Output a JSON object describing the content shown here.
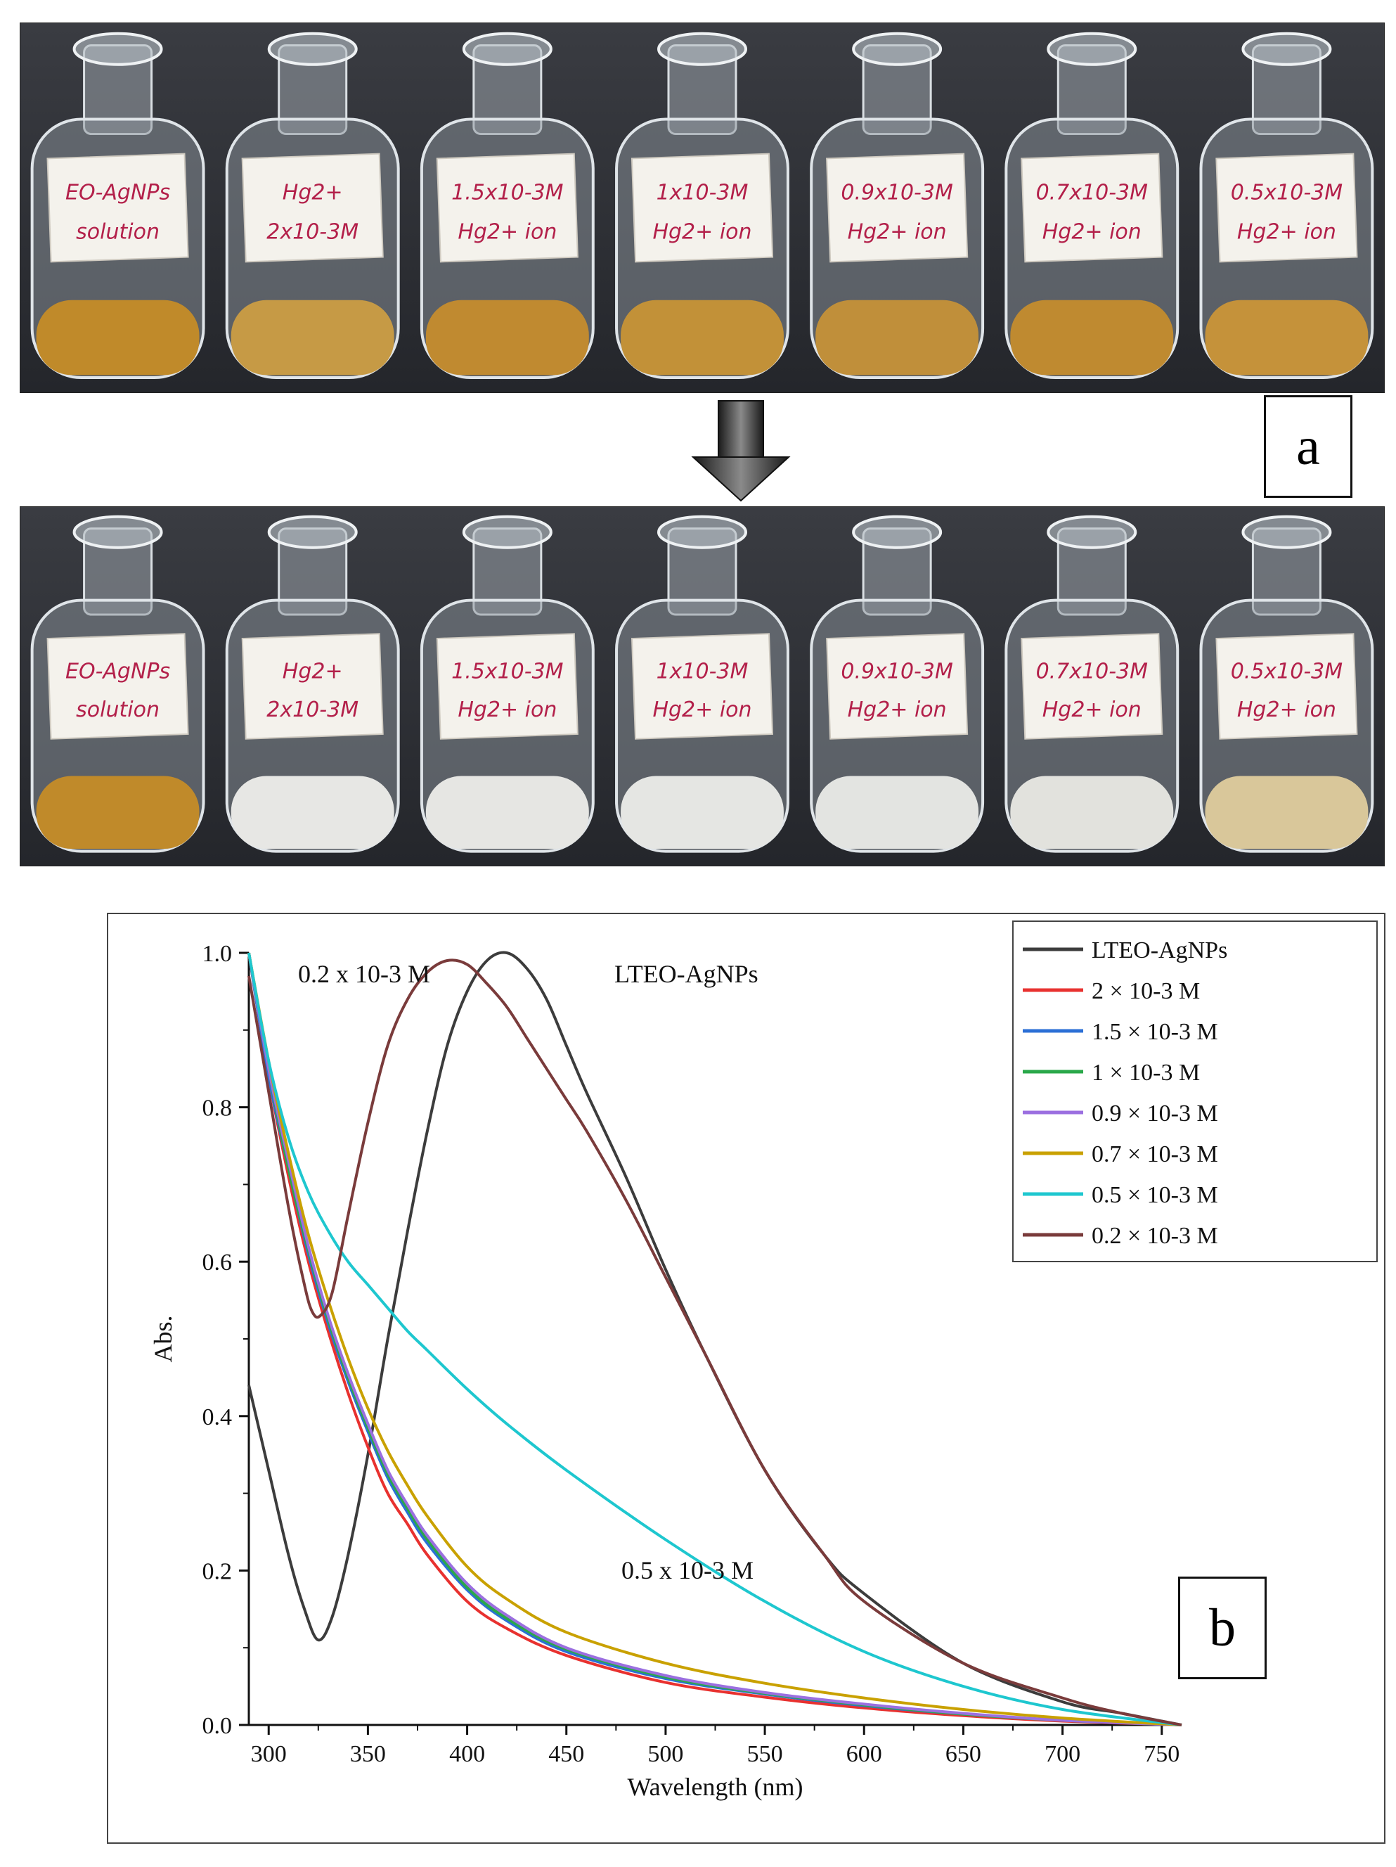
{
  "photos": {
    "top_labels": [
      [
        "EO-AgNPs",
        "solution"
      ],
      [
        "Hg2+",
        "2x10-3M"
      ],
      [
        "1.5x10-3M",
        "Hg2+ ion"
      ],
      [
        "1x10-3M",
        "Hg2+ ion"
      ],
      [
        "0.9x10-3M",
        "Hg2+ ion"
      ],
      [
        "0.7x10-3M",
        "Hg2+ ion"
      ],
      [
        "0.5x10-3M",
        "Hg2+ ion"
      ]
    ],
    "top_liquid_colors": [
      "#c08a2a",
      "#c69a45",
      "#c08a30",
      "#c29138",
      "#c08f3a",
      "#bf8a30",
      "#c5923a"
    ],
    "bottom_labels": [
      [
        "EO-AgNPs",
        "solution"
      ],
      [
        "Hg2+",
        "2x10-3M"
      ],
      [
        "1.5x10-3M",
        "Hg2+ ion"
      ],
      [
        "1x10-3M",
        "Hg2+ ion"
      ],
      [
        "0.9x10-3M",
        "Hg2+ ion"
      ],
      [
        "0.7x10-3M",
        "Hg2+ ion"
      ],
      [
        "0.5x10-3M",
        "Hg2+ ion"
      ]
    ],
    "bottom_liquid_colors": [
      "#c08a2a",
      "#e7e7e4",
      "#e6e6e3",
      "#e5e6e3",
      "#e3e4e1",
      "#e2e2dd",
      "#d9c79a"
    ],
    "panel_a": "a"
  },
  "chart_data": {
    "type": "line",
    "panel_label": "b",
    "xlabel": "Wavelength (nm)",
    "ylabel": "Abs.",
    "xlim": [
      290,
      760
    ],
    "ylim": [
      0,
      1.0
    ],
    "xticks": [
      300,
      350,
      400,
      450,
      500,
      550,
      600,
      650,
      700,
      750
    ],
    "yticks": [
      0.0,
      0.2,
      0.4,
      0.6,
      0.8,
      1.0
    ],
    "grid": false,
    "legend_position": "top-right",
    "annotations": [
      {
        "text": "0.2 x 10-3 M",
        "near_series": "0.2 × 10-3 M"
      },
      {
        "text": "LTEO-AgNPs",
        "near_series": "LTEO-AgNPs"
      },
      {
        "text": "0.5 x 10-3 M",
        "near_series": "0.5 × 10-3 M"
      }
    ],
    "series": [
      {
        "name": "LTEO-AgNPs",
        "color": "#3c3c3c",
        "x": [
          290,
          300,
          310,
          318,
          325,
          332,
          340,
          350,
          360,
          370,
          380,
          390,
          400,
          410,
          420,
          430,
          440,
          450,
          460,
          480,
          500,
          520,
          550,
          580,
          600,
          650,
          700,
          730,
          760
        ],
        "y": [
          0.44,
          0.33,
          0.22,
          0.15,
          0.11,
          0.14,
          0.22,
          0.35,
          0.5,
          0.64,
          0.77,
          0.88,
          0.95,
          0.99,
          1.0,
          0.98,
          0.94,
          0.88,
          0.82,
          0.71,
          0.59,
          0.48,
          0.33,
          0.22,
          0.17,
          0.08,
          0.03,
          0.015,
          0.0
        ]
      },
      {
        "name": "2 × 10-3 M",
        "color": "#e8312f",
        "x": [
          290,
          300,
          310,
          320,
          330,
          340,
          350,
          360,
          370,
          380,
          400,
          420,
          450,
          500,
          550,
          600,
          650,
          700,
          760
        ],
        "y": [
          1.0,
          0.84,
          0.71,
          0.6,
          0.51,
          0.43,
          0.36,
          0.3,
          0.26,
          0.22,
          0.16,
          0.125,
          0.09,
          0.055,
          0.036,
          0.022,
          0.012,
          0.005,
          0.0
        ]
      },
      {
        "name": "1.5 × 10-3 M",
        "color": "#2b6fd6",
        "x": [
          290,
          300,
          310,
          320,
          330,
          340,
          350,
          360,
          370,
          380,
          400,
          420,
          450,
          500,
          550,
          600,
          650,
          700,
          760
        ],
        "y": [
          1.0,
          0.84,
          0.72,
          0.61,
          0.52,
          0.445,
          0.38,
          0.32,
          0.275,
          0.235,
          0.175,
          0.135,
          0.095,
          0.06,
          0.04,
          0.025,
          0.014,
          0.006,
          0.0
        ]
      },
      {
        "name": "1 × 10-3 M",
        "color": "#2aa84a",
        "x": [
          290,
          300,
          310,
          320,
          330,
          340,
          350,
          360,
          370,
          380,
          400,
          420,
          450,
          500,
          550,
          600,
          650,
          700,
          760
        ],
        "y": [
          1.0,
          0.85,
          0.72,
          0.615,
          0.525,
          0.45,
          0.385,
          0.325,
          0.28,
          0.24,
          0.178,
          0.138,
          0.098,
          0.062,
          0.041,
          0.026,
          0.014,
          0.006,
          0.0
        ]
      },
      {
        "name": "0.9 × 10-3 M",
        "color": "#9b6fe0",
        "x": [
          290,
          300,
          310,
          320,
          330,
          340,
          350,
          360,
          370,
          380,
          400,
          420,
          450,
          500,
          550,
          600,
          650,
          700,
          760
        ],
        "y": [
          1.0,
          0.85,
          0.73,
          0.62,
          0.53,
          0.455,
          0.39,
          0.33,
          0.285,
          0.245,
          0.183,
          0.142,
          0.1,
          0.064,
          0.042,
          0.027,
          0.015,
          0.006,
          0.0
        ]
      },
      {
        "name": "0.7 × 10-3 M",
        "color": "#c9a100",
        "x": [
          290,
          300,
          310,
          320,
          330,
          340,
          350,
          360,
          370,
          380,
          400,
          420,
          450,
          500,
          550,
          600,
          650,
          700,
          760
        ],
        "y": [
          1.0,
          0.86,
          0.74,
          0.635,
          0.55,
          0.475,
          0.41,
          0.355,
          0.31,
          0.27,
          0.205,
          0.163,
          0.12,
          0.08,
          0.054,
          0.035,
          0.02,
          0.009,
          0.0
        ]
      },
      {
        "name": "0.5 × 10-3 M",
        "color": "#1ec7cf",
        "x": [
          290,
          300,
          310,
          320,
          330,
          340,
          350,
          360,
          370,
          380,
          400,
          420,
          450,
          500,
          550,
          600,
          650,
          700,
          760
        ],
        "y": [
          1.0,
          0.86,
          0.76,
          0.69,
          0.64,
          0.6,
          0.57,
          0.54,
          0.51,
          0.485,
          0.435,
          0.39,
          0.33,
          0.24,
          0.16,
          0.095,
          0.05,
          0.02,
          0.0
        ]
      },
      {
        "name": "0.2 × 10-3 M",
        "color": "#7a3b3b",
        "x": [
          290,
          300,
          310,
          318,
          322,
          326,
          332,
          340,
          350,
          360,
          370,
          380,
          390,
          400,
          410,
          420,
          430,
          440,
          450,
          460,
          480,
          500,
          520,
          550,
          580,
          600,
          650,
          700,
          730,
          760
        ],
        "y": [
          0.97,
          0.82,
          0.67,
          0.57,
          0.535,
          0.53,
          0.56,
          0.66,
          0.78,
          0.88,
          0.94,
          0.975,
          0.99,
          0.985,
          0.96,
          0.93,
          0.89,
          0.85,
          0.81,
          0.77,
          0.68,
          0.58,
          0.48,
          0.33,
          0.22,
          0.16,
          0.08,
          0.035,
          0.015,
          0.0
        ]
      }
    ]
  }
}
